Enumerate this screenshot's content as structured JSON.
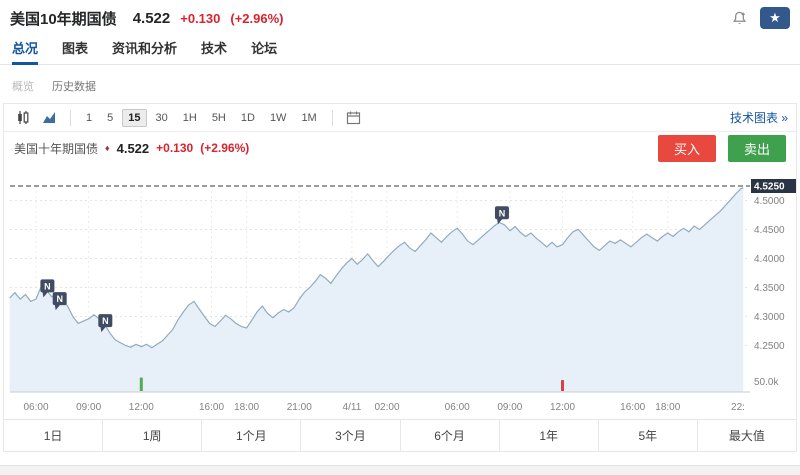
{
  "header": {
    "title": "美国10年期国债",
    "price": "4.522",
    "change": "+0.130",
    "change_pct": "(+2.96%)",
    "icons": [
      "alert-bell-icon",
      "star-icon"
    ],
    "star_glyph": "★"
  },
  "nav": {
    "tabs": [
      {
        "label": "总况",
        "active": true
      },
      {
        "label": "图表",
        "active": false
      },
      {
        "label": "资讯和分析",
        "active": false
      },
      {
        "label": "技术",
        "active": false
      },
      {
        "label": "论坛",
        "active": false
      }
    ]
  },
  "subnav": {
    "items": [
      {
        "label": "概览"
      },
      {
        "label": "历史数据"
      }
    ]
  },
  "toolbar": {
    "chart_type_icons": [
      "candlestick-chart-icon",
      "area-chart-icon"
    ],
    "intervals": [
      "1",
      "5",
      "15",
      "30",
      "1H",
      "5H",
      "1D",
      "1W",
      "1M"
    ],
    "active_interval": "15",
    "tech_chart_link": "技术图表 »"
  },
  "chart_header": {
    "title": "美国十年期国债",
    "diamond": "♦",
    "price": "4.522",
    "change": "+0.130",
    "change_pct": "(+2.96%)",
    "buy_label": "买入",
    "sell_label": "卖出"
  },
  "chart_data": {
    "type": "area",
    "instrument": "美国十年期国债",
    "current": {
      "v": 4.525,
      "label": "4.5250"
    },
    "last_price": 4.522,
    "y_ticks": [
      {
        "v": 4.5,
        "label": "4.5000"
      },
      {
        "v": 4.45,
        "label": "4.4500"
      },
      {
        "v": 4.4,
        "label": "4.4000"
      },
      {
        "v": 4.35,
        "label": "4.3500"
      },
      {
        "v": 4.3,
        "label": "4.3000"
      },
      {
        "v": 4.25,
        "label": "4.2500"
      }
    ],
    "volume_axis_label": "50.0k",
    "x_ticks": [
      {
        "h": 0,
        "label": "06:00"
      },
      {
        "h": 3,
        "label": "09:00"
      },
      {
        "h": 6,
        "label": "12:00"
      },
      {
        "h": 10,
        "label": "16:00"
      },
      {
        "h": 12,
        "label": "18:00"
      },
      {
        "h": 15,
        "label": "21:00"
      },
      {
        "h": 18,
        "label": "4/11"
      },
      {
        "h": 20,
        "label": "02:00"
      },
      {
        "h": 24,
        "label": "06:00"
      },
      {
        "h": 27,
        "label": "09:00"
      },
      {
        "h": 30,
        "label": "12:00"
      },
      {
        "h": 34,
        "label": "16:00"
      },
      {
        "h": 36,
        "label": "18:00"
      },
      {
        "h": 40,
        "label": "22:"
      }
    ],
    "news_markers": [
      {
        "h": 0.65,
        "v": 4.352,
        "label": "N"
      },
      {
        "h": 1.35,
        "v": 4.33,
        "label": "N"
      },
      {
        "h": 3.95,
        "v": 4.292,
        "label": "N"
      },
      {
        "h": 26.55,
        "v": 4.478,
        "label": "N"
      }
    ],
    "volume_bars": [
      {
        "h": 6,
        "value_k": 16,
        "direction": "down"
      },
      {
        "h": 30,
        "value_k": 13,
        "direction": "up"
      }
    ],
    "points": [
      [
        -1.5,
        4.332
      ],
      [
        -1.2,
        4.341
      ],
      [
        -0.9,
        4.33
      ],
      [
        -0.6,
        4.338
      ],
      [
        -0.3,
        4.326
      ],
      [
        0,
        4.33
      ],
      [
        0.3,
        4.352
      ],
      [
        0.6,
        4.345
      ],
      [
        0.9,
        4.334
      ],
      [
        1.2,
        4.34
      ],
      [
        1.5,
        4.327
      ],
      [
        1.8,
        4.318
      ],
      [
        2.1,
        4.3
      ],
      [
        2.4,
        4.288
      ],
      [
        2.7,
        4.292
      ],
      [
        3.0,
        4.296
      ],
      [
        3.3,
        4.303
      ],
      [
        3.6,
        4.296
      ],
      [
        3.9,
        4.287
      ],
      [
        4.2,
        4.272
      ],
      [
        4.5,
        4.26
      ],
      [
        4.8,
        4.255
      ],
      [
        5.1,
        4.25
      ],
      [
        5.4,
        4.247
      ],
      [
        5.7,
        4.252
      ],
      [
        6.0,
        4.248
      ],
      [
        6.3,
        4.252
      ],
      [
        6.6,
        4.246
      ],
      [
        6.9,
        4.252
      ],
      [
        7.2,
        4.258
      ],
      [
        7.5,
        4.268
      ],
      [
        7.8,
        4.278
      ],
      [
        8.1,
        4.295
      ],
      [
        8.4,
        4.308
      ],
      [
        8.7,
        4.32
      ],
      [
        9.0,
        4.326
      ],
      [
        9.3,
        4.313
      ],
      [
        9.6,
        4.3
      ],
      [
        9.9,
        4.288
      ],
      [
        10.2,
        4.283
      ],
      [
        10.5,
        4.292
      ],
      [
        10.8,
        4.302
      ],
      [
        11.1,
        4.296
      ],
      [
        11.4,
        4.288
      ],
      [
        11.7,
        4.283
      ],
      [
        12.0,
        4.28
      ],
      [
        12.3,
        4.294
      ],
      [
        12.6,
        4.308
      ],
      [
        12.9,
        4.318
      ],
      [
        13.2,
        4.305
      ],
      [
        13.5,
        4.298
      ],
      [
        13.8,
        4.306
      ],
      [
        14.1,
        4.312
      ],
      [
        14.4,
        4.308
      ],
      [
        14.7,
        4.315
      ],
      [
        15.0,
        4.33
      ],
      [
        15.3,
        4.342
      ],
      [
        15.6,
        4.35
      ],
      [
        15.9,
        4.36
      ],
      [
        16.2,
        4.372
      ],
      [
        16.5,
        4.366
      ],
      [
        16.8,
        4.357
      ],
      [
        17.1,
        4.37
      ],
      [
        17.4,
        4.382
      ],
      [
        17.7,
        4.392
      ],
      [
        18.0,
        4.4
      ],
      [
        18.3,
        4.39
      ],
      [
        18.6,
        4.398
      ],
      [
        18.9,
        4.408
      ],
      [
        19.2,
        4.396
      ],
      [
        19.5,
        4.386
      ],
      [
        19.8,
        4.395
      ],
      [
        20.1,
        4.405
      ],
      [
        20.4,
        4.414
      ],
      [
        20.7,
        4.422
      ],
      [
        21.0,
        4.428
      ],
      [
        21.3,
        4.418
      ],
      [
        21.6,
        4.412
      ],
      [
        21.9,
        4.422
      ],
      [
        22.2,
        4.432
      ],
      [
        22.5,
        4.444
      ],
      [
        22.8,
        4.436
      ],
      [
        23.1,
        4.428
      ],
      [
        23.4,
        4.438
      ],
      [
        23.7,
        4.446
      ],
      [
        24.0,
        4.452
      ],
      [
        24.3,
        4.442
      ],
      [
        24.6,
        4.43
      ],
      [
        24.9,
        4.424
      ],
      [
        25.2,
        4.432
      ],
      [
        25.5,
        4.44
      ],
      [
        25.8,
        4.448
      ],
      [
        26.1,
        4.456
      ],
      [
        26.4,
        4.462
      ],
      [
        26.7,
        4.458
      ],
      [
        27.0,
        4.448
      ],
      [
        27.3,
        4.455
      ],
      [
        27.6,
        4.445
      ],
      [
        27.9,
        4.438
      ],
      [
        28.2,
        4.444
      ],
      [
        28.5,
        4.435
      ],
      [
        28.8,
        4.428
      ],
      [
        29.1,
        4.42
      ],
      [
        29.4,
        4.428
      ],
      [
        29.7,
        4.42
      ],
      [
        30.0,
        4.424
      ],
      [
        30.3,
        4.436
      ],
      [
        30.6,
        4.446
      ],
      [
        30.9,
        4.45
      ],
      [
        31.2,
        4.44
      ],
      [
        31.5,
        4.43
      ],
      [
        31.8,
        4.42
      ],
      [
        32.1,
        4.414
      ],
      [
        32.4,
        4.422
      ],
      [
        32.7,
        4.43
      ],
      [
        33.0,
        4.426
      ],
      [
        33.3,
        4.432
      ],
      [
        33.6,
        4.426
      ],
      [
        33.9,
        4.42
      ],
      [
        34.2,
        4.428
      ],
      [
        34.5,
        4.436
      ],
      [
        34.8,
        4.442
      ],
      [
        35.1,
        4.436
      ],
      [
        35.4,
        4.43
      ],
      [
        35.7,
        4.438
      ],
      [
        36.0,
        4.444
      ],
      [
        36.3,
        4.438
      ],
      [
        36.6,
        4.446
      ],
      [
        36.9,
        4.452
      ],
      [
        37.2,
        4.446
      ],
      [
        37.5,
        4.456
      ],
      [
        37.8,
        4.45
      ],
      [
        38.1,
        4.458
      ],
      [
        38.4,
        4.466
      ],
      [
        38.7,
        4.474
      ],
      [
        39.0,
        4.482
      ],
      [
        39.3,
        4.492
      ],
      [
        39.6,
        4.502
      ],
      [
        39.9,
        4.512
      ],
      [
        40.15,
        4.52
      ],
      [
        40.3,
        4.522
      ]
    ]
  },
  "ranges": [
    "1日",
    "1周",
    "1个月",
    "3个月",
    "6个月",
    "1年",
    "5年",
    "最大值"
  ],
  "colors": {
    "accent_blue": "#1256a0",
    "up_red": "#d9232e",
    "buy_bg": "#e9483f",
    "sell_bg": "#3fa14d",
    "area_line": "#92abbe",
    "area_fill": "#e7f0f8",
    "marker_bg": "#3f4c61",
    "tag_bg": "#2a3442",
    "star_btn_bg": "#33588c",
    "volume_up": "#db4040",
    "volume_down": "#4caf50"
  }
}
